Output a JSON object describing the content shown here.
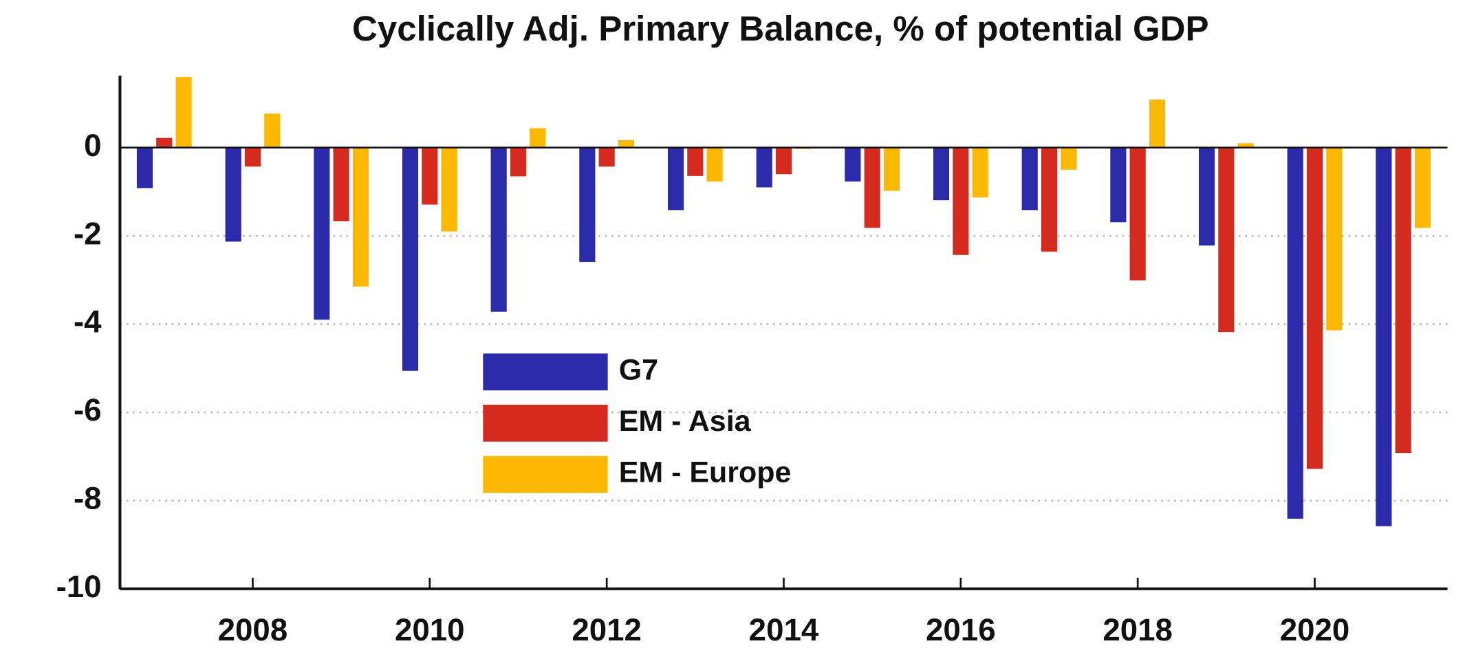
{
  "chart_data": {
    "type": "bar",
    "title": "Cyclically Adj. Primary Balance, % of potential GDP",
    "x": [
      2007,
      2008,
      2009,
      2010,
      2011,
      2012,
      2013,
      2014,
      2015,
      2016,
      2017,
      2018,
      2019,
      2020,
      2021
    ],
    "series": [
      {
        "name": "G7",
        "color": "#2a2aab",
        "values": [
          -0.92,
          -2.13,
          -3.9,
          -5.06,
          -3.72,
          -2.59,
          -1.42,
          -0.9,
          -0.77,
          -1.19,
          -1.42,
          -1.69,
          -2.22,
          -8.41,
          -8.58
        ]
      },
      {
        "name": "EM - Asia",
        "color": "#d62a1f",
        "values": [
          0.22,
          -0.43,
          -1.67,
          -1.29,
          -0.65,
          -0.43,
          -0.64,
          -0.6,
          -1.82,
          -2.43,
          -2.36,
          -3.01,
          -4.18,
          -7.28,
          -6.92
        ]
      },
      {
        "name": "EM - Europe",
        "color": "#fdb900",
        "values": [
          1.6,
          0.77,
          -3.15,
          -1.9,
          0.44,
          0.17,
          -0.77,
          -0.03,
          -0.98,
          -1.13,
          -0.5,
          1.09,
          0.1,
          -4.14,
          -1.82
        ]
      }
    ],
    "xlim": [
      2006.5,
      2021.5
    ],
    "xticks": [
      2008,
      2010,
      2012,
      2014,
      2016,
      2018,
      2020
    ],
    "ylim": [
      -10,
      1.63
    ],
    "yticks": [
      0,
      -2,
      -4,
      -6,
      -8,
      -10
    ],
    "grid": true,
    "shaded_ranges": [
      [
        2007.5,
        2009.5
      ],
      [
        2019.5,
        2021.5
      ]
    ],
    "legend": "center"
  }
}
